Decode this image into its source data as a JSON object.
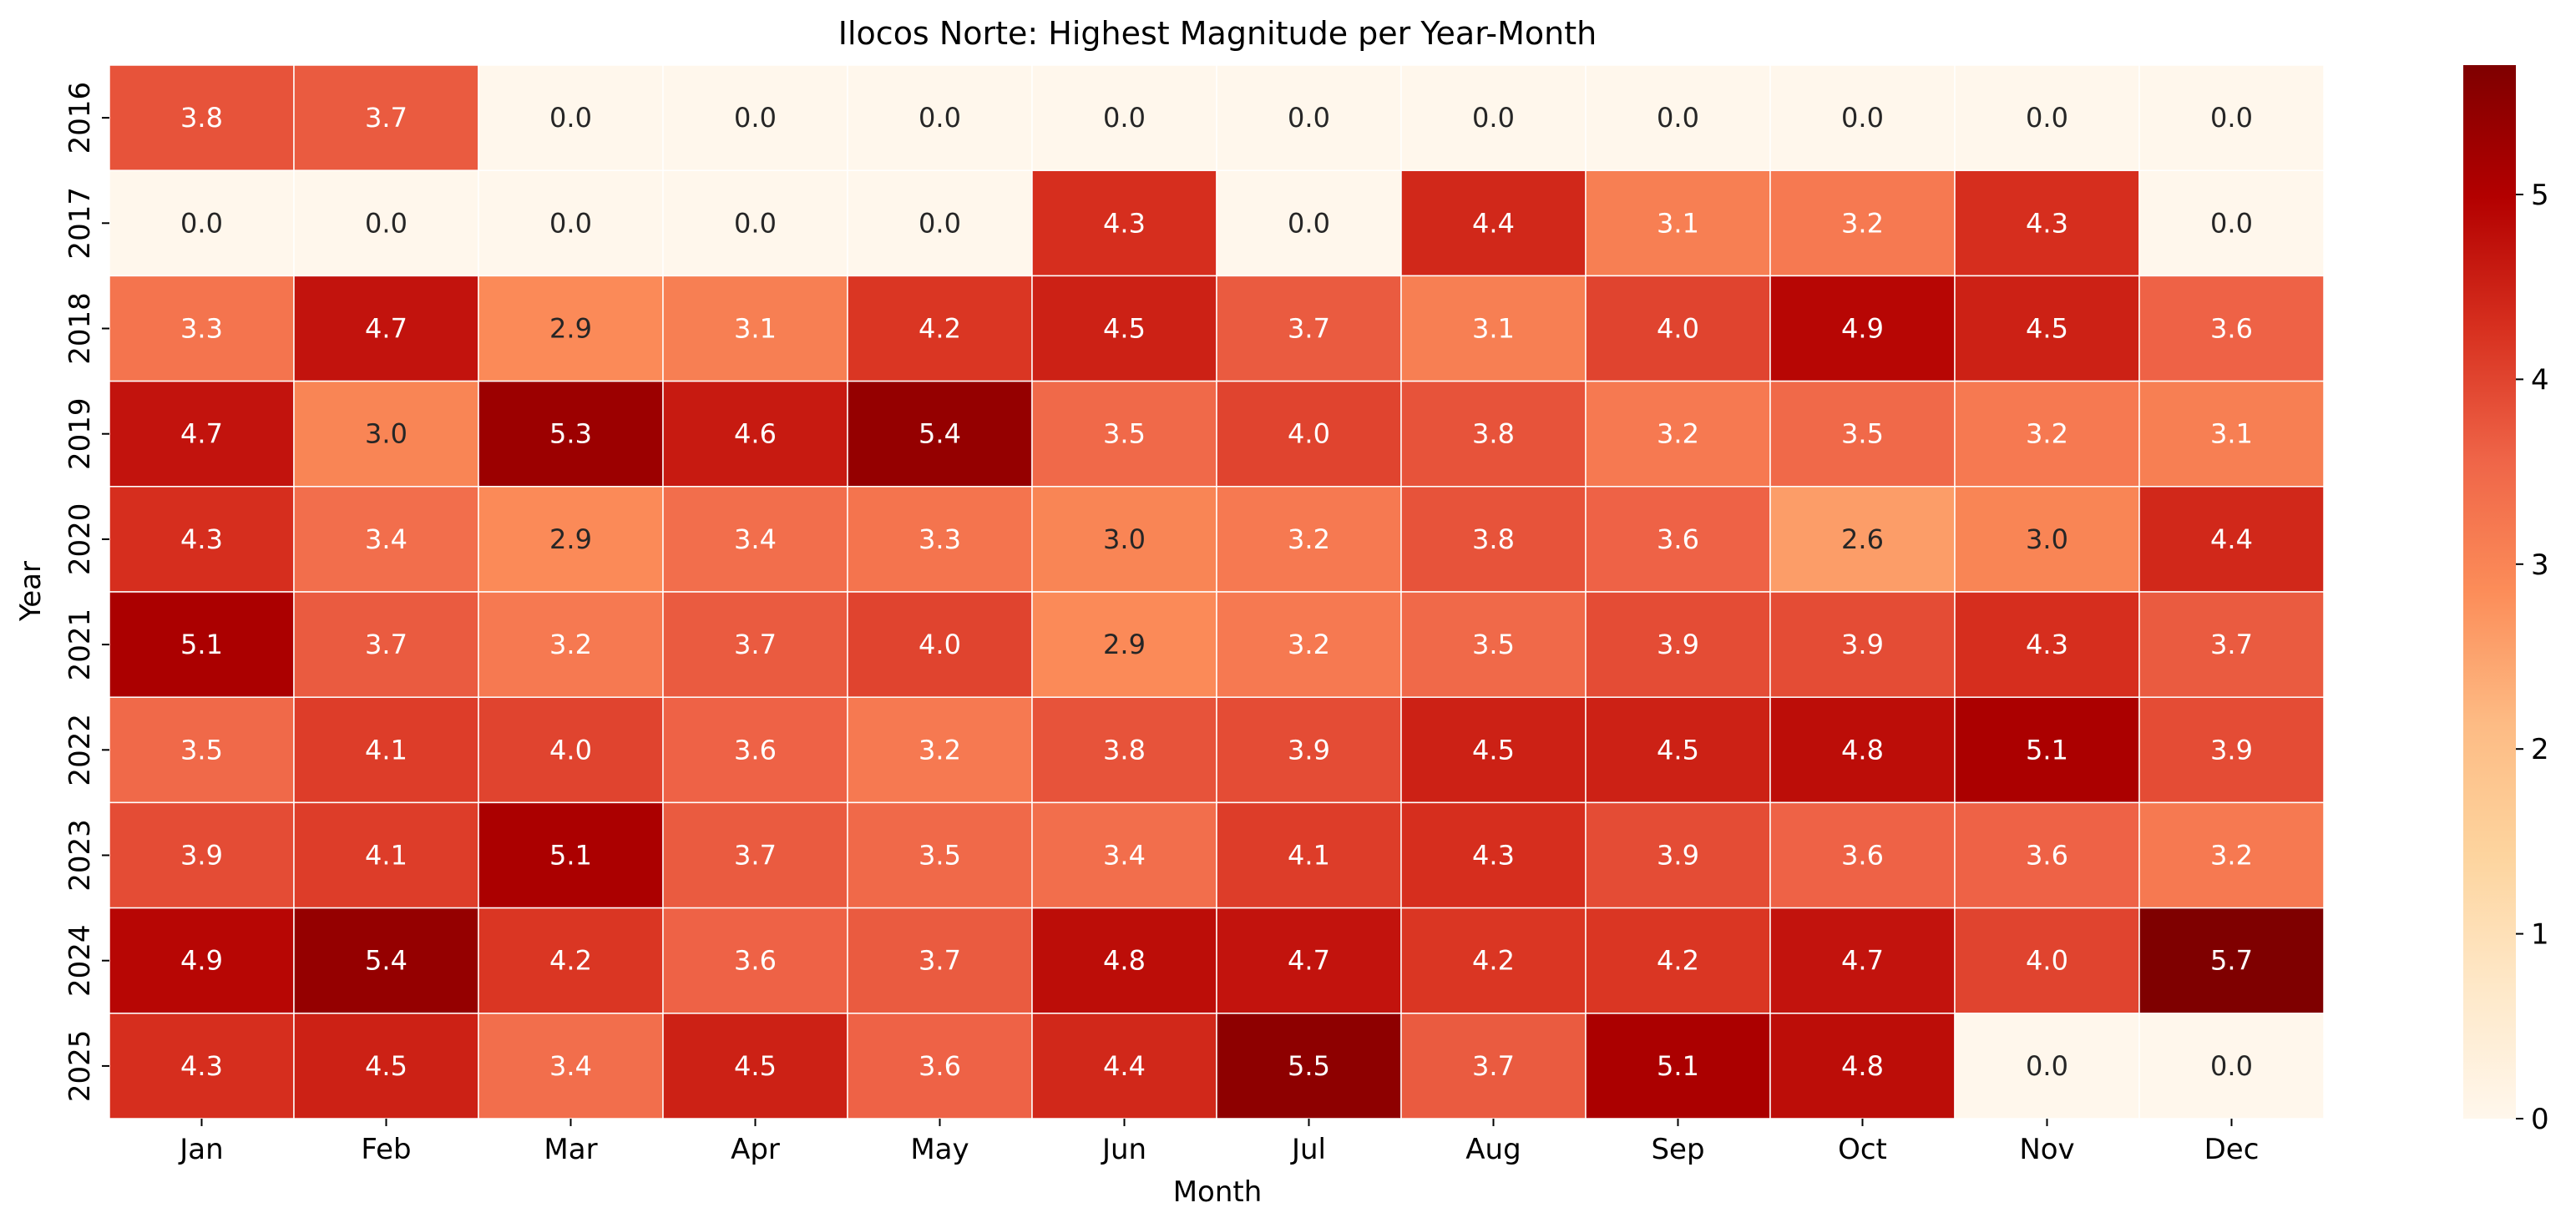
{
  "chart_data": {
    "type": "heatmap",
    "title": "Ilocos Norte: Highest Magnitude per Year-Month",
    "xlabel": "Month",
    "ylabel": "Year",
    "x_categories": [
      "Jan",
      "Feb",
      "Mar",
      "Apr",
      "May",
      "Jun",
      "Jul",
      "Aug",
      "Sep",
      "Oct",
      "Nov",
      "Dec"
    ],
    "y_categories": [
      "2016",
      "2017",
      "2018",
      "2019",
      "2020",
      "2021",
      "2022",
      "2023",
      "2024",
      "2025"
    ],
    "values": [
      [
        3.8,
        3.7,
        0.0,
        0.0,
        0.0,
        0.0,
        0.0,
        0.0,
        0.0,
        0.0,
        0.0,
        0.0
      ],
      [
        0.0,
        0.0,
        0.0,
        0.0,
        0.0,
        4.3,
        0.0,
        4.4,
        3.1,
        3.2,
        4.3,
        0.0
      ],
      [
        3.3,
        4.7,
        2.9,
        3.1,
        4.2,
        4.5,
        3.7,
        3.1,
        4.0,
        4.9,
        4.5,
        3.6
      ],
      [
        4.7,
        3.0,
        5.3,
        4.6,
        5.4,
        3.5,
        4.0,
        3.8,
        3.2,
        3.5,
        3.2,
        3.1
      ],
      [
        4.3,
        3.4,
        2.9,
        3.4,
        3.3,
        3.0,
        3.2,
        3.8,
        3.6,
        2.6,
        3.0,
        4.4
      ],
      [
        5.1,
        3.7,
        3.2,
        3.7,
        4.0,
        2.9,
        3.2,
        3.5,
        3.9,
        3.9,
        4.3,
        3.7
      ],
      [
        3.5,
        4.1,
        4.0,
        3.6,
        3.2,
        3.8,
        3.9,
        4.5,
        4.5,
        4.8,
        5.1,
        3.9
      ],
      [
        3.9,
        4.1,
        5.1,
        3.7,
        3.5,
        3.4,
        4.1,
        4.3,
        3.9,
        3.6,
        3.6,
        3.2
      ],
      [
        4.9,
        5.4,
        4.2,
        3.6,
        3.7,
        4.8,
        4.7,
        4.2,
        4.2,
        4.7,
        4.0,
        5.7
      ],
      [
        4.3,
        4.5,
        3.4,
        4.5,
        3.6,
        4.4,
        5.5,
        3.7,
        5.1,
        4.8,
        0.0,
        0.0
      ]
    ],
    "value_format": "0.0",
    "vmin": 0,
    "vmax": 5.7,
    "colormap": "OrRd",
    "colorbar_ticks": [
      "0",
      "1",
      "2",
      "3",
      "4",
      "5"
    ],
    "colorbar_tick_values": [
      0,
      1,
      2,
      3,
      4,
      5
    ],
    "legend_position": "right",
    "grid": false,
    "colors": {
      "cell_border": "#ffffff",
      "text_light": "#ffffff",
      "text_dark": "#262626",
      "axis_text": "#000000"
    }
  }
}
